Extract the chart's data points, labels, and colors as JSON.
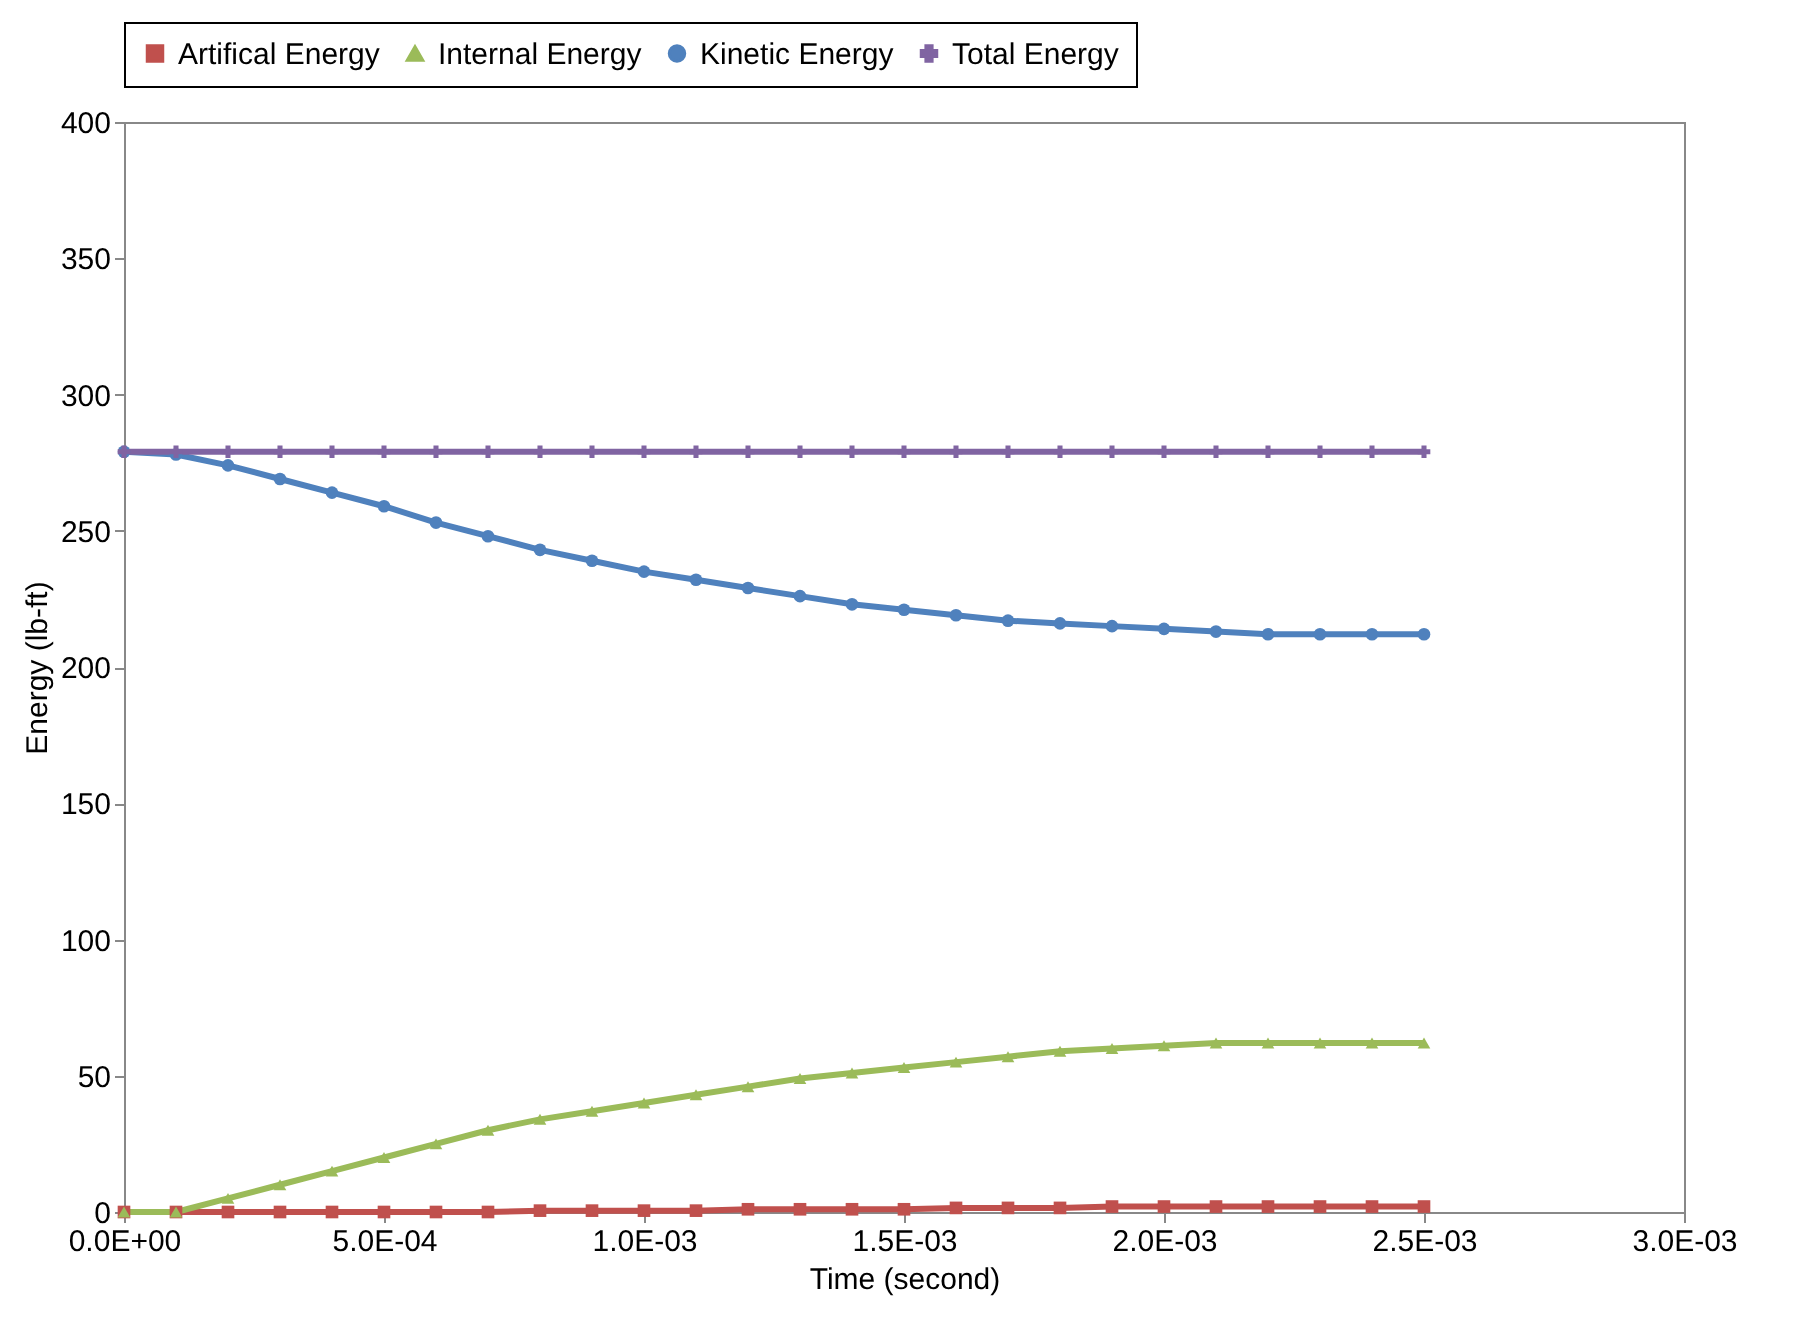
{
  "chart_data": {
    "type": "line",
    "xlabel": "Time (second)",
    "ylabel": "Energy (lb-ft)",
    "x": [
      0,
      0.0001,
      0.0002,
      0.0003,
      0.0004,
      0.0005,
      0.0006,
      0.0007,
      0.0008,
      0.0009,
      0.001,
      0.0011,
      0.0012,
      0.0013,
      0.0014,
      0.0015,
      0.0016,
      0.0017,
      0.0018,
      0.0019,
      0.002,
      0.0021,
      0.0022,
      0.0023,
      0.0024,
      0.0025
    ],
    "series": [
      {
        "name": "Artifical Energy",
        "color": "#c0504d",
        "marker": "square",
        "values": [
          0,
          0,
          0,
          0,
          0,
          0,
          0,
          0,
          0.5,
          0.5,
          0.5,
          0.5,
          1,
          1,
          1,
          1,
          1.5,
          1.5,
          1.5,
          2,
          2,
          2,
          2,
          2,
          2,
          2
        ]
      },
      {
        "name": "Internal Energy",
        "color": "#9bbb59",
        "marker": "triangle",
        "values": [
          0,
          0,
          5,
          10,
          15,
          20,
          25,
          30,
          34,
          37,
          40,
          43,
          46,
          49,
          51,
          53,
          55,
          57,
          59,
          60,
          61,
          62,
          62,
          62,
          62,
          62
        ]
      },
      {
        "name": "Kinetic Energy",
        "color": "#4f81bd",
        "marker": "circle",
        "values": [
          279,
          278,
          274,
          269,
          264,
          259,
          253,
          248,
          243,
          239,
          235,
          232,
          229,
          226,
          223,
          221,
          219,
          217,
          216,
          215,
          214,
          213,
          212,
          212,
          212,
          212
        ]
      },
      {
        "name": "Total Energy",
        "color": "#8064a2",
        "marker": "cross",
        "values": [
          279,
          279,
          279,
          279,
          279,
          279,
          279,
          279,
          279,
          279,
          279,
          279,
          279,
          279,
          279,
          279,
          279,
          279,
          279,
          279,
          279,
          279,
          279,
          279,
          279,
          279
        ]
      }
    ],
    "xlim": [
      0,
      0.003
    ],
    "xticks": [
      {
        "value": 0,
        "label": "0.0E+00"
      },
      {
        "value": 0.0005,
        "label": "5.0E-04"
      },
      {
        "value": 0.001,
        "label": "1.0E-03"
      },
      {
        "value": 0.0015,
        "label": "1.5E-03"
      },
      {
        "value": 0.002,
        "label": "2.0E-03"
      },
      {
        "value": 0.0025,
        "label": "2.5E-03"
      },
      {
        "value": 0.003,
        "label": "3.0E-03"
      }
    ],
    "ylim": [
      0,
      400
    ],
    "yticks": [
      0,
      50,
      100,
      150,
      200,
      250,
      300,
      350,
      400
    ],
    "legend": "top"
  }
}
